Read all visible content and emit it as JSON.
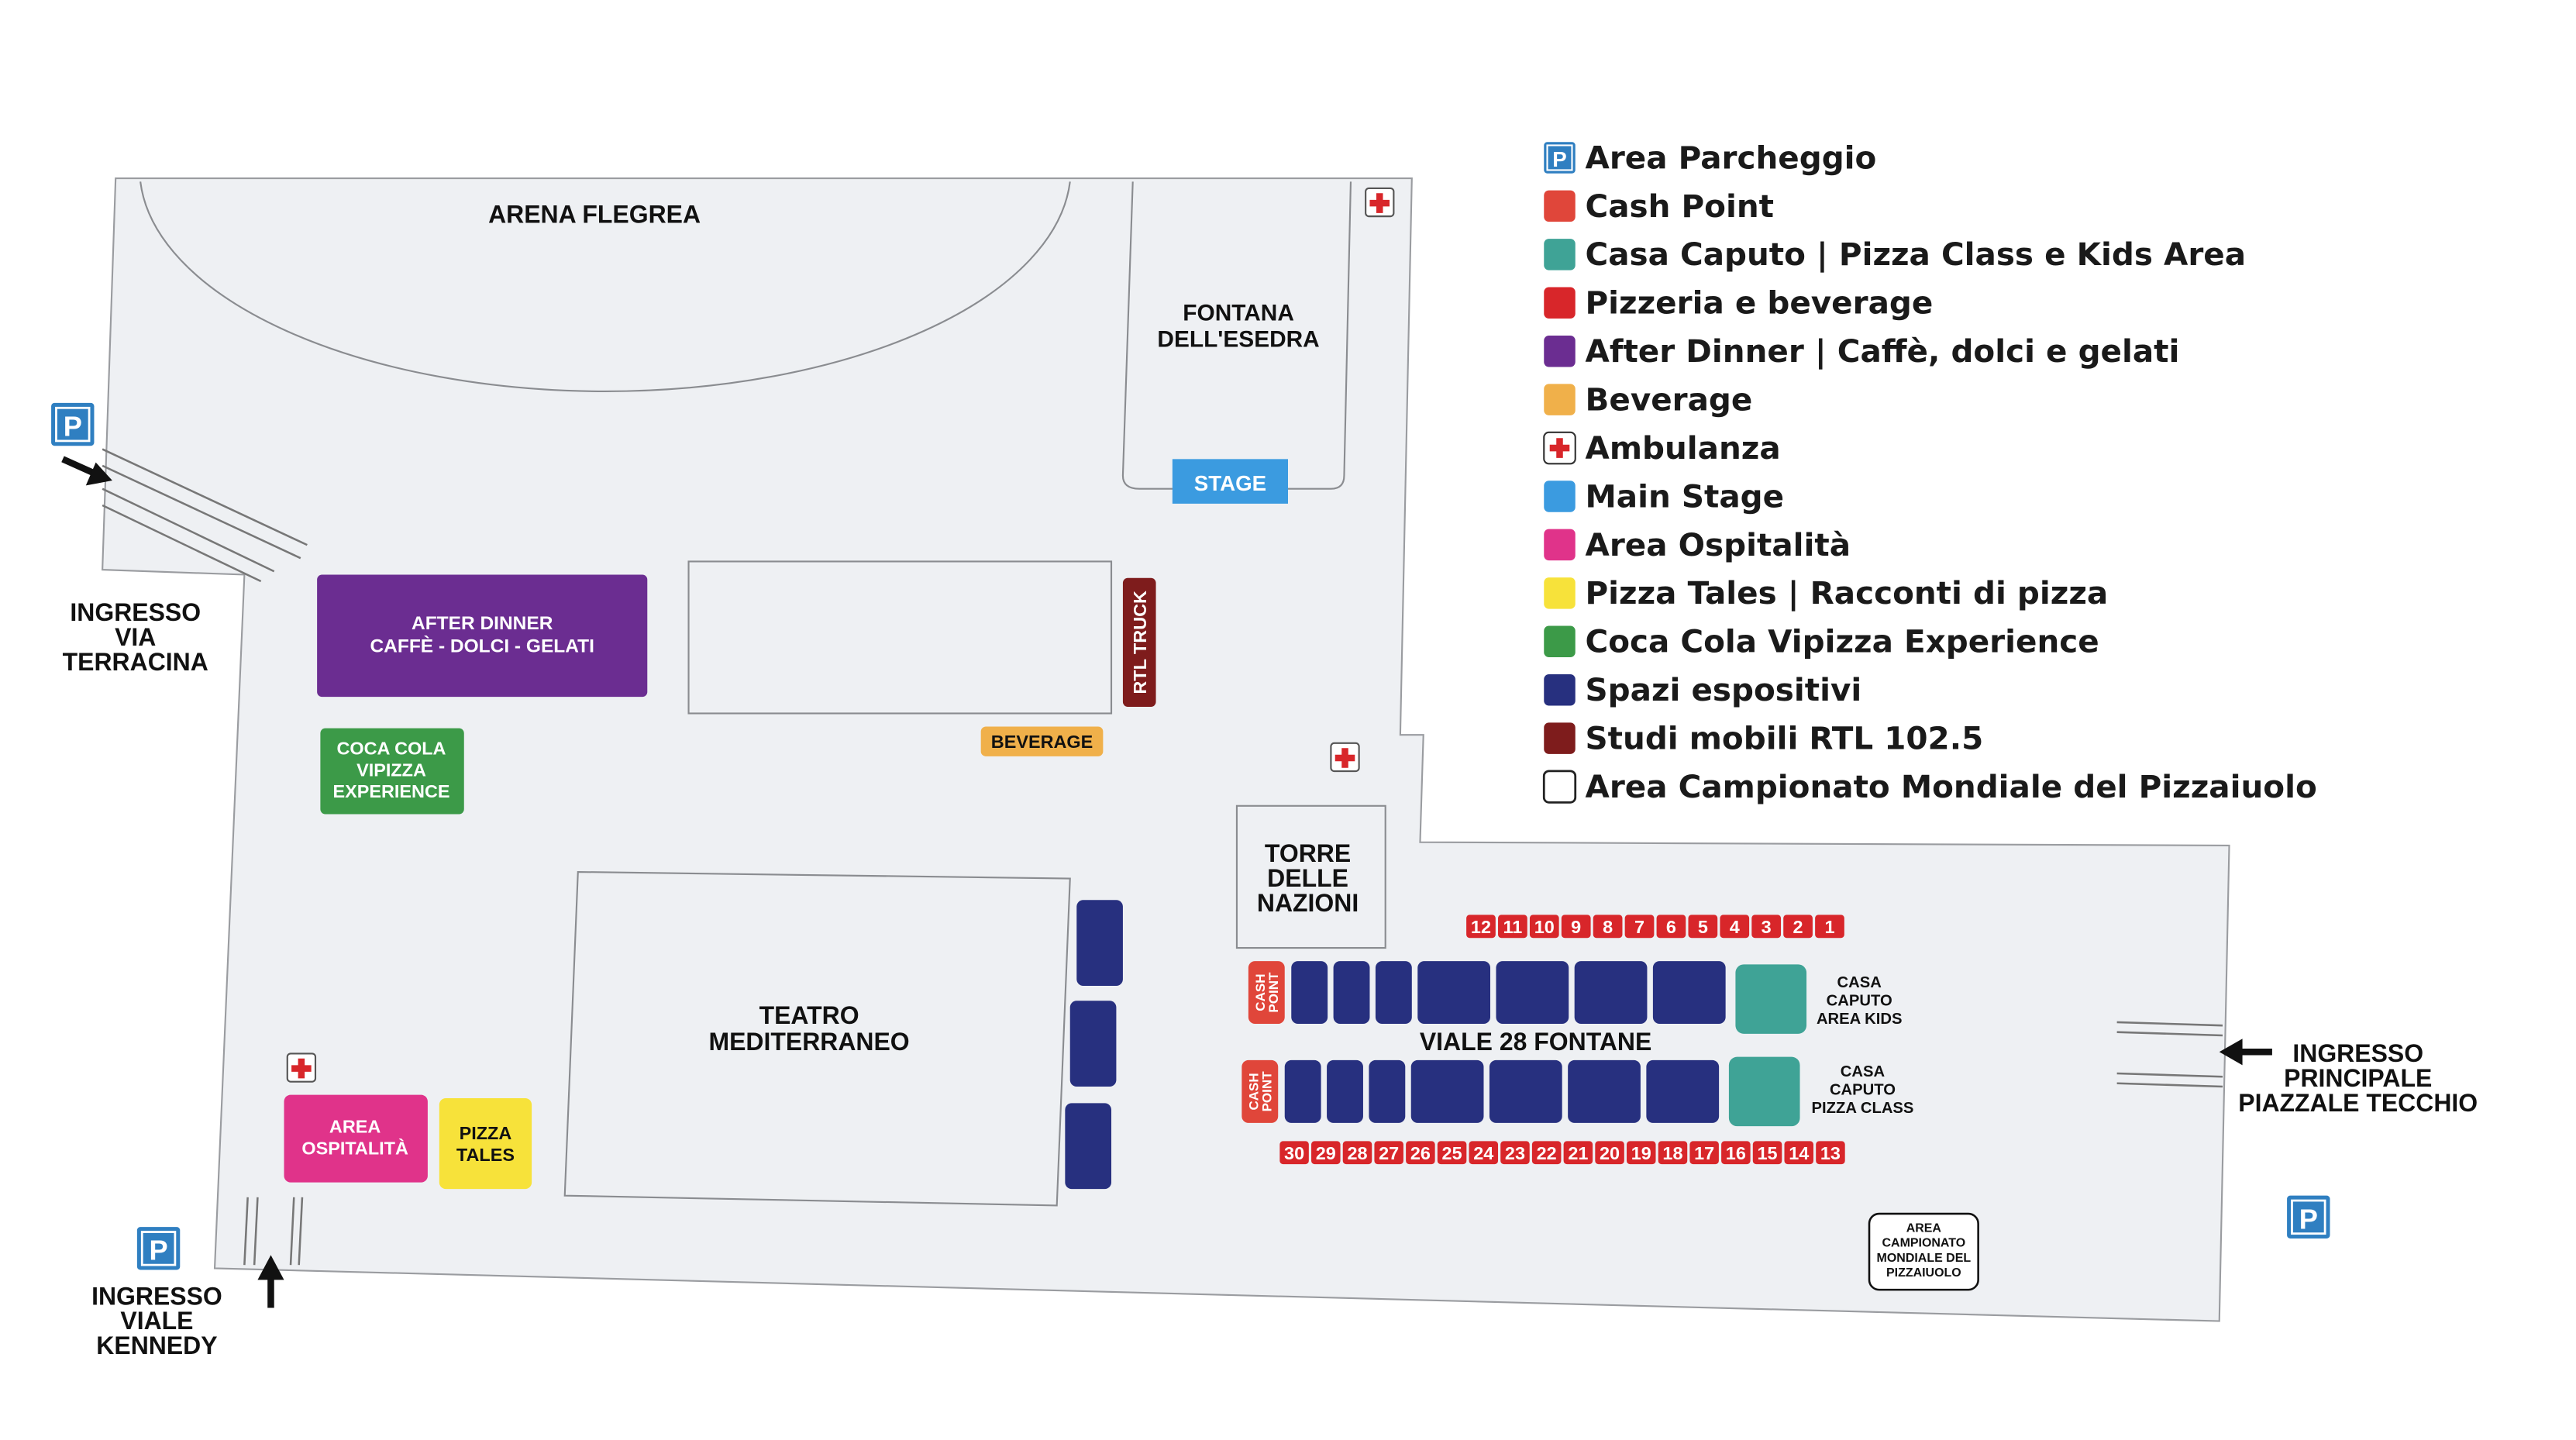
{
  "map": {
    "arena_flegrea": "ARENA FLEGREA",
    "fontana": [
      "FONTANA",
      "DELL'ESEDRA"
    ],
    "stage": "STAGE",
    "after_dinner": [
      "AFTER DINNER",
      "CAFFÈ - DOLCI - GELATI"
    ],
    "rtl_truck": "RTL TRUCK",
    "beverage": "BEVERAGE",
    "coca_cola": [
      "COCA COLA",
      "VIPIZZA",
      "EXPERIENCE"
    ],
    "torre": [
      "TORRE",
      "DELLE",
      "NAZIONI"
    ],
    "teatro": [
      "TEATRO",
      "MEDITERRANEO"
    ],
    "area_ospitalita": [
      "AREA",
      "OSPITALITÀ"
    ],
    "pizza_tales": [
      "PIZZA",
      "TALES"
    ],
    "viale": "VIALE 28 FONTANE",
    "cash_point": [
      "CASH",
      "POINT"
    ],
    "casa_caputo_kids": [
      "CASA",
      "CAPUTO",
      "AREA KIDS"
    ],
    "casa_caputo_class": [
      "CASA",
      "CAPUTO",
      "PIZZA CLASS"
    ],
    "campionato": [
      "AREA",
      "CAMPIONATO",
      "MONDIALE DEL",
      "PIZZAIUOLO"
    ],
    "stalls_top": [
      "12",
      "11",
      "10",
      "9",
      "8",
      "7",
      "6",
      "5",
      "4",
      "3",
      "2",
      "1"
    ],
    "stalls_bottom": [
      "30",
      "29",
      "28",
      "27",
      "26",
      "25",
      "24",
      "23",
      "22",
      "21",
      "20",
      "19",
      "18",
      "17",
      "16",
      "15",
      "14",
      "13"
    ],
    "parking_symbol": "P",
    "entrances": {
      "terracina": [
        "INGRESSO",
        "VIA",
        "TERRACINA"
      ],
      "kennedy": [
        "INGRESSO",
        "VIALE",
        "KENNEDY"
      ],
      "principale": [
        "INGRESSO",
        "PRINCIPALE",
        "PIAZZALE TECCHIO"
      ]
    }
  },
  "legend": [
    {
      "label": "Area Parcheggio",
      "icon": "parking-icon",
      "color": "#2f7fc1"
    },
    {
      "label": "Cash Point",
      "color": "#e0463a"
    },
    {
      "label": "Casa Caputo | Pizza Class e Kids Area",
      "color": "#3fa396"
    },
    {
      "label": "Pizzeria e beverage",
      "color": "#d8262a"
    },
    {
      "label": "After Dinner | Caffè, dolci e gelati",
      "color": "#6b2d91"
    },
    {
      "label": "Beverage",
      "color": "#f0b04a"
    },
    {
      "label": "Ambulanza",
      "icon": "ambulance-cross-icon",
      "color": "#d8262a"
    },
    {
      "label": "Main Stage",
      "color": "#3b9be0"
    },
    {
      "label": "Area Ospitalità",
      "color": "#e0338a"
    },
    {
      "label": "Pizza Tales | Racconti di pizza",
      "color": "#f7e23a"
    },
    {
      "label": "Coca Cola Vipizza Experience",
      "color": "#3c9a48"
    },
    {
      "label": "Spazi espositivi",
      "color": "#27307f"
    },
    {
      "label": "Studi mobili RTL 102.5",
      "color": "#7e1c1c"
    },
    {
      "label": "Area Campionato Mondiale del Pizzaiuolo",
      "color": "#ffffff"
    }
  ]
}
